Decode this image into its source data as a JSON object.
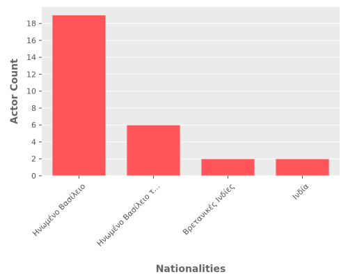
{
  "chart_data": {
    "type": "bar",
    "categories": [
      "Ηνωμένο Βασίλειο",
      "Ηνωμένο Βασίλειο τ...",
      "Βρετανικές Ινδίες",
      "Ινδία"
    ],
    "values": [
      19,
      6,
      2,
      2
    ],
    "xlabel": "Nationalities",
    "ylabel": "Actor Count",
    "ylim": [
      0,
      19.95
    ],
    "yticks": [
      0,
      2,
      4,
      6,
      8,
      10,
      12,
      14,
      16,
      18
    ],
    "grid": true,
    "legend": "none",
    "colors": {
      "bar": "#ff5459",
      "bar_edge": "#e3e3e3",
      "plot_bg": "#ebebeb",
      "grid": "#ffffff",
      "text": "#555555"
    }
  }
}
